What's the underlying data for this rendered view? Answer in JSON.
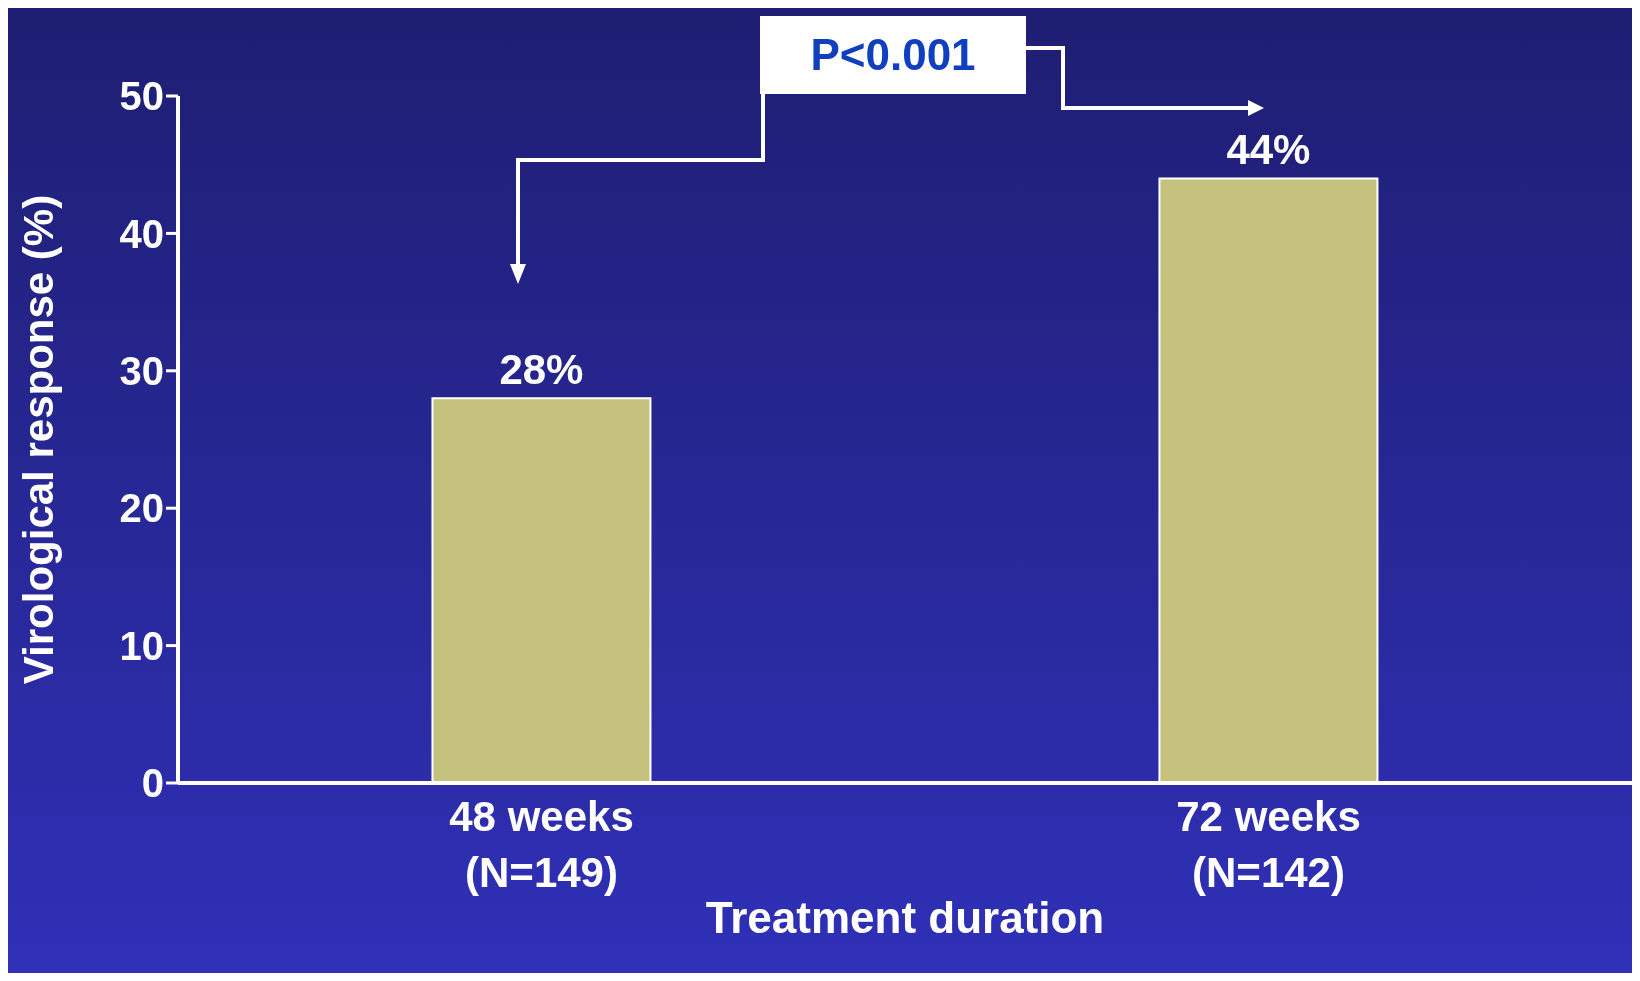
{
  "chart_data": {
    "type": "bar",
    "xlabel": "Treatment duration",
    "ylabel": "Virological response (%)",
    "categories": [
      "48 weeks\n(N=149)",
      "72 weeks\n(N=142)"
    ],
    "values": [
      28,
      44
    ],
    "value_labels": [
      "28%",
      "44%"
    ],
    "color": "#c4c27c",
    "ylim": [
      0,
      50
    ],
    "yticks": [
      0,
      10,
      20,
      30,
      40,
      50
    ],
    "grid": false,
    "annotations": [
      "P<0.001"
    ]
  }
}
